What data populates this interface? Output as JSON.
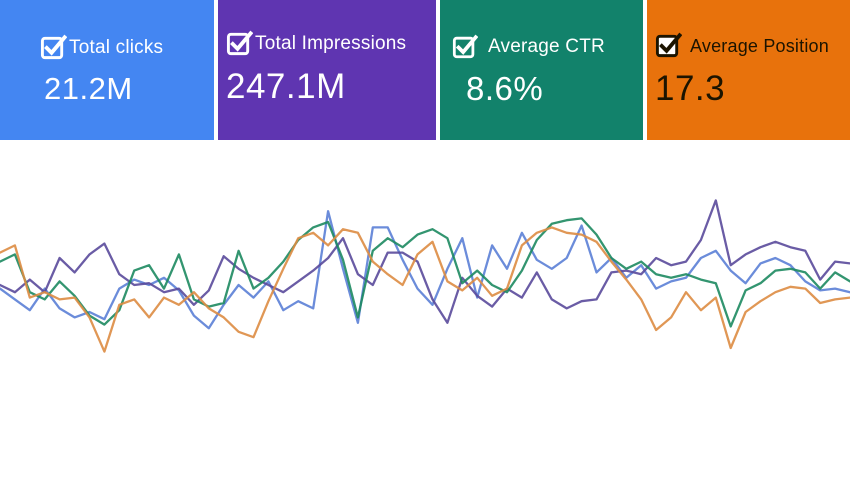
{
  "cards": [
    {
      "label": "Total clicks",
      "value": "21.2M",
      "bg": "#4486f2",
      "text_color": "#ffffff",
      "checkbox_style": "outline-white"
    },
    {
      "label": "Total Impressions",
      "value": "247.1M",
      "bg": "#5f35b1",
      "text_color": "#ffffff",
      "checkbox_style": "outline-white"
    },
    {
      "label": "Average CTR",
      "value": "8.6%",
      "bg": "#12826b",
      "text_color": "#ffffff",
      "checkbox_style": "outline-white"
    },
    {
      "label": "Average Position",
      "value": "17.3",
      "bg": "#e8720c",
      "text_color": "#1c1400",
      "checkbox_style": "filled-white-black-check"
    }
  ],
  "chart_data": {
    "type": "line",
    "title": "",
    "xlabel": "",
    "ylabel": "",
    "grid": false,
    "legend": "none",
    "axes_hidden": true,
    "x_points": 58,
    "ylim": [
      0,
      100
    ],
    "series": [
      {
        "name": "Total clicks",
        "color": "#5b7fd6",
        "values": [
          48,
          42,
          36,
          48,
          37,
          32,
          35,
          31,
          48,
          53,
          50,
          54,
          47,
          33,
          26,
          39,
          50,
          43,
          52,
          36,
          41,
          37,
          91,
          59,
          29,
          82,
          82,
          64,
          48,
          39,
          59,
          76,
          43,
          72,
          59,
          79,
          64,
          59,
          65,
          83,
          57,
          65,
          54,
          61,
          48,
          52,
          54,
          65,
          69,
          58,
          51,
          62,
          65,
          61,
          52,
          47,
          48,
          46
        ]
      },
      {
        "name": "Total Impressions",
        "color": "#5a4a9b",
        "values": [
          50,
          46,
          53,
          46,
          65,
          57,
          67,
          73,
          56,
          50,
          51,
          46,
          48,
          39,
          47,
          66,
          59,
          54,
          50,
          46,
          52,
          58,
          65,
          76,
          56,
          50,
          68,
          68,
          63,
          42,
          29,
          54,
          44,
          38,
          48,
          43,
          57,
          42,
          37,
          41,
          42,
          57,
          58,
          56,
          65,
          61,
          63,
          75,
          97,
          61,
          67,
          71,
          74,
          71,
          69,
          53,
          63,
          62
        ]
      },
      {
        "name": "Average CTR",
        "color": "#1d8a60",
        "values": [
          63,
          67,
          46,
          42,
          52,
          44,
          33,
          28,
          36,
          58,
          61,
          48,
          67,
          42,
          38,
          40,
          69,
          48,
          54,
          63,
          75,
          82,
          85,
          64,
          32,
          69,
          76,
          71,
          78,
          81,
          76,
          51,
          58,
          50,
          46,
          58,
          75,
          84,
          86,
          87,
          78,
          65,
          59,
          63,
          56,
          54,
          56,
          53,
          51,
          27,
          47,
          51,
          58,
          59,
          57,
          48,
          57,
          52
        ]
      },
      {
        "name": "Average Position",
        "color": "#dd8c42",
        "values": [
          68,
          72,
          43,
          46,
          42,
          43,
          32,
          13,
          39,
          42,
          32,
          43,
          39,
          46,
          37,
          32,
          24,
          21,
          41,
          59,
          76,
          79,
          72,
          81,
          79,
          63,
          56,
          50,
          67,
          74,
          52,
          47,
          54,
          44,
          48,
          72,
          79,
          82,
          79,
          78,
          74,
          63,
          53,
          42,
          25,
          32,
          46,
          36,
          43,
          15,
          35,
          41,
          46,
          49,
          48,
          40,
          42,
          43
        ]
      }
    ]
  }
}
